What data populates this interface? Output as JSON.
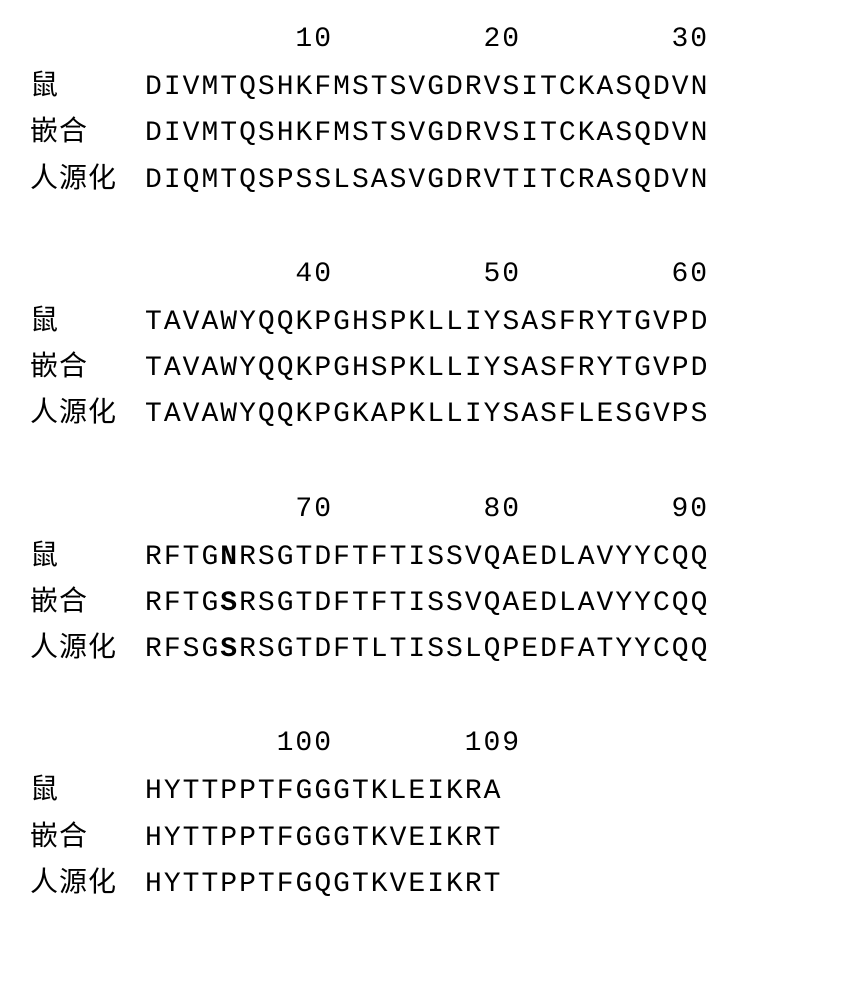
{
  "labels": {
    "mouse": "鼠",
    "chimeric": "嵌合",
    "humanized": "人源化"
  },
  "blocks": [
    {
      "ruler": "        10        20        30",
      "rows": [
        {
          "labelKey": "mouse",
          "seq": "DIVMTQSHKFMSTSVGDRVSITCKASQDVN"
        },
        {
          "labelKey": "chimeric",
          "seq": "DIVMTQSHKFMSTSVGDRVSITCKASQDVN"
        },
        {
          "labelKey": "humanized",
          "seq": "DIQMTQSPSSLSASVGDRVTITCRASQDVN"
        }
      ]
    },
    {
      "ruler": "        40        50        60",
      "rows": [
        {
          "labelKey": "mouse",
          "seq": "TAVAWYQQKPGHSPKLLIYSASFRYTGVPD"
        },
        {
          "labelKey": "chimeric",
          "seq": "TAVAWYQQKPGHSPKLLIYSASFRYTGVPD"
        },
        {
          "labelKey": "humanized",
          "seq": "TAVAWYQQKPGKAPKLLIYSASFLESGVPS"
        }
      ]
    },
    {
      "ruler": "        70        80        90",
      "rows": [
        {
          "labelKey": "mouse",
          "seq": "RFTGNRSGTDFTFTISSVQAEDLAVYYCQQ",
          "bold": [
            4
          ]
        },
        {
          "labelKey": "chimeric",
          "seq": "RFTGSRSGTDFTFTISSVQAEDLAVYYCQQ",
          "bold": [
            4
          ]
        },
        {
          "labelKey": "humanized",
          "seq": "RFSGSRSGTDFTLTISSLQPEDFATYYCQQ",
          "bold": [
            4
          ]
        }
      ]
    },
    {
      "ruler": "       100       109",
      "rows": [
        {
          "labelKey": "mouse",
          "seq": "HYTTPPTFGGGTKLEIKRA"
        },
        {
          "labelKey": "chimeric",
          "seq": "HYTTPPTFGGGTKVEIKRT"
        },
        {
          "labelKey": "humanized",
          "seq": "HYTTPPTFGQGTKVEIKRT"
        }
      ]
    }
  ],
  "colors": {
    "background": "#ffffff",
    "text": "#000000"
  },
  "typography": {
    "seq_font": "Courier New",
    "label_font": "SimSun",
    "seq_fontsize": 28,
    "label_fontsize": 28,
    "letter_spacing": 2
  }
}
